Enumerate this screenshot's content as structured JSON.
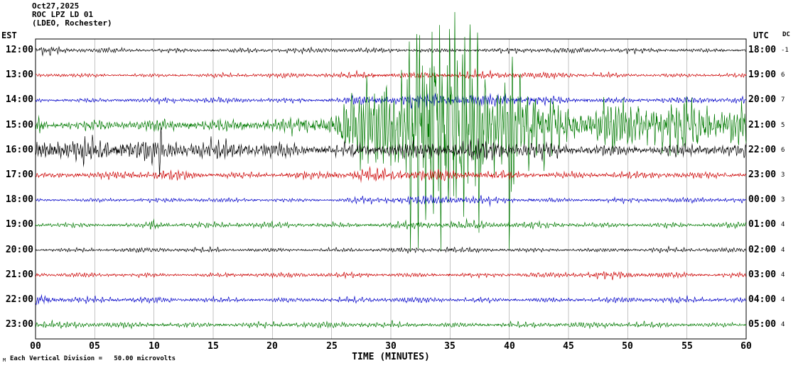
{
  "header": {
    "date": "Oct27,2025",
    "station": "ROC LPZ LD 01",
    "network": "(LDEO, Rochester)"
  },
  "axes": {
    "left_label": "EST",
    "right_label": "UTC",
    "dc_label": "DC",
    "x_label": "TIME (MINUTES)"
  },
  "footer": {
    "mark": "M",
    "scale_note": "Each Vertical Division =   50.00 microvolts"
  },
  "chart_data": {
    "type": "line",
    "subtype": "helicorder-seismogram",
    "title": "ROC LPZ LD 01 (LDEO, Rochester) Oct27,2025",
    "x_axis": {
      "label": "TIME (MINUTES)",
      "min": 0,
      "max": 60,
      "tick_interval_min": 5,
      "ticks": [
        "00",
        "05",
        "10",
        "15",
        "20",
        "25",
        "30",
        "35",
        "40",
        "45",
        "50",
        "55",
        "60"
      ]
    },
    "division_microvolts": 50.0,
    "grid": true,
    "colors": {
      "black": "#000000",
      "red": "#cc0000",
      "blue": "#0000c8",
      "green": "#007a00",
      "grid": "#a8a8a8"
    },
    "rows": [
      {
        "est": "12:00",
        "utc": "18:00",
        "dc": "-1",
        "color": "black",
        "envelope": [
          [
            0,
            3.5
          ],
          [
            1,
            4.5
          ],
          [
            3,
            2.8
          ],
          [
            30,
            2.6
          ],
          [
            40,
            3
          ],
          [
            41,
            4
          ],
          [
            42,
            3
          ],
          [
            60,
            2.6
          ]
        ]
      },
      {
        "est": "13:00",
        "utc": "19:00",
        "dc": "6",
        "color": "red",
        "envelope": [
          [
            0,
            2.2
          ],
          [
            20,
            2.4
          ],
          [
            26,
            3
          ],
          [
            28,
            4.5
          ],
          [
            33,
            4
          ],
          [
            36,
            4.5
          ],
          [
            40,
            4
          ],
          [
            44,
            3
          ],
          [
            50,
            2.6
          ],
          [
            60,
            2.6
          ]
        ]
      },
      {
        "est": "14:00",
        "utc": "20:00",
        "dc": "7",
        "color": "blue",
        "envelope": [
          [
            0,
            2.6
          ],
          [
            10,
            2.8
          ],
          [
            24,
            3
          ],
          [
            26,
            4
          ],
          [
            27,
            7
          ],
          [
            30,
            6
          ],
          [
            33,
            7
          ],
          [
            36,
            6
          ],
          [
            40,
            6.5
          ],
          [
            43,
            5
          ],
          [
            46,
            4
          ],
          [
            50,
            3.5
          ],
          [
            60,
            3.2
          ]
        ]
      },
      {
        "est": "15:00",
        "utc": "21:00",
        "dc": "5",
        "color": "green",
        "envelope": [
          [
            0,
            6
          ],
          [
            0.3,
            14
          ],
          [
            0.9,
            6
          ],
          [
            3,
            5
          ],
          [
            8,
            5.5
          ],
          [
            12,
            6
          ],
          [
            16,
            7
          ],
          [
            20,
            9
          ],
          [
            22,
            11
          ],
          [
            24,
            14
          ],
          [
            25.5,
            18
          ],
          [
            26.5,
            35
          ],
          [
            27.5,
            55
          ],
          [
            28.5,
            45
          ],
          [
            29.5,
            60
          ],
          [
            30.5,
            50
          ],
          [
            31.2,
            70
          ],
          [
            31.6,
            150
          ],
          [
            32,
            70
          ],
          [
            32.4,
            185
          ],
          [
            32.8,
            80
          ],
          [
            33.3,
            170
          ],
          [
            33.7,
            85
          ],
          [
            34.2,
            155
          ],
          [
            34.7,
            75
          ],
          [
            35.2,
            165
          ],
          [
            35.7,
            85
          ],
          [
            36.3,
            140
          ],
          [
            36.9,
            70
          ],
          [
            37.4,
            125
          ],
          [
            38,
            60
          ],
          [
            38.8,
            50
          ],
          [
            39.6,
            45
          ],
          [
            40.1,
            165
          ],
          [
            40.5,
            55
          ],
          [
            41.2,
            48
          ],
          [
            42,
            42
          ],
          [
            43,
            38
          ],
          [
            44,
            34
          ],
          [
            45,
            30
          ],
          [
            46.5,
            27
          ],
          [
            48,
            30
          ],
          [
            50,
            26
          ],
          [
            52,
            30
          ],
          [
            54,
            26
          ],
          [
            56,
            29
          ],
          [
            58,
            25
          ],
          [
            60,
            26
          ]
        ]
      },
      {
        "est": "16:00",
        "utc": "22:00",
        "dc": "6",
        "color": "black",
        "envelope": [
          [
            0,
            16
          ],
          [
            1,
            20
          ],
          [
            3,
            16
          ],
          [
            6,
            17
          ],
          [
            9,
            14
          ],
          [
            10.3,
            12
          ],
          [
            10.5,
            38
          ],
          [
            10.7,
            12
          ],
          [
            12,
            11
          ],
          [
            15,
            10
          ],
          [
            18,
            9
          ],
          [
            22,
            8
          ],
          [
            26,
            9
          ],
          [
            30,
            10
          ],
          [
            34,
            9
          ],
          [
            38,
            10
          ],
          [
            42,
            9
          ],
          [
            46,
            8
          ],
          [
            50,
            7
          ],
          [
            55,
            7
          ],
          [
            60,
            6
          ]
        ]
      },
      {
        "est": "17:00",
        "utc": "23:00",
        "dc": "3",
        "color": "red",
        "envelope": [
          [
            0,
            3
          ],
          [
            8,
            4
          ],
          [
            12,
            5
          ],
          [
            15,
            4
          ],
          [
            20,
            4
          ],
          [
            25,
            5
          ],
          [
            27,
            6
          ],
          [
            35,
            6
          ],
          [
            40,
            5
          ],
          [
            44,
            4
          ],
          [
            50,
            3.5
          ],
          [
            60,
            3.5
          ]
        ]
      },
      {
        "est": "18:00",
        "utc": "00:00",
        "dc": "3",
        "color": "blue",
        "envelope": [
          [
            0,
            2.2
          ],
          [
            25,
            2.4
          ],
          [
            28,
            4.5
          ],
          [
            37,
            4.5
          ],
          [
            41,
            3
          ],
          [
            60,
            2.6
          ]
        ]
      },
      {
        "est": "19:00",
        "utc": "01:00",
        "dc": "4",
        "color": "green",
        "envelope": [
          [
            0,
            3
          ],
          [
            9.3,
            3
          ],
          [
            9.8,
            8
          ],
          [
            10.5,
            4
          ],
          [
            11.5,
            3.2
          ],
          [
            28,
            3.2
          ],
          [
            31,
            4.5
          ],
          [
            36,
            4.5
          ],
          [
            40,
            3.5
          ],
          [
            60,
            3
          ]
        ]
      },
      {
        "est": "20:00",
        "utc": "02:00",
        "dc": "4",
        "color": "black",
        "envelope": [
          [
            0,
            2.5
          ],
          [
            34.5,
            2.5
          ],
          [
            35,
            4.5
          ],
          [
            35.6,
            2.5
          ],
          [
            60,
            2.5
          ]
        ]
      },
      {
        "est": "21:00",
        "utc": "03:00",
        "dc": "4",
        "color": "red",
        "envelope": [
          [
            0,
            2.5
          ],
          [
            44,
            2.8
          ],
          [
            48,
            4
          ],
          [
            53,
            4
          ],
          [
            56,
            3
          ],
          [
            60,
            3
          ]
        ]
      },
      {
        "est": "22:00",
        "utc": "04:00",
        "dc": "4",
        "color": "blue",
        "envelope": [
          [
            0,
            8
          ],
          [
            0.8,
            8
          ],
          [
            2,
            3.5
          ],
          [
            10,
            3
          ],
          [
            60,
            3
          ]
        ]
      },
      {
        "est": "23:00",
        "utc": "05:00",
        "dc": "4",
        "color": "green",
        "envelope": [
          [
            0,
            4
          ],
          [
            2,
            3.4
          ],
          [
            30,
            3.2
          ],
          [
            60,
            3
          ]
        ]
      }
    ]
  }
}
